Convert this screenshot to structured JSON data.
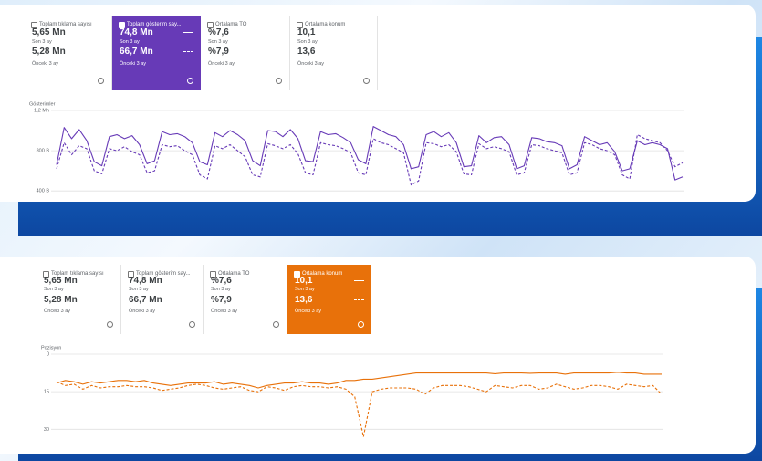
{
  "panels": [
    {
      "selected": 1,
      "cards": [
        {
          "title": "Toplam tıklama sayısı",
          "current": "5,65 Mn",
          "current_label": "Son 3 ay",
          "previous": "5,28 Mn",
          "previous_label": "Önceki 3 ay"
        },
        {
          "title": "Toplam gösterim say...",
          "current": "74,8 Mn",
          "previous": "66,7 Mn"
        },
        {
          "title": "Ortalama TO",
          "current": "%7,6",
          "current_label": "Son 3 ay",
          "previous": "%7,9",
          "previous_label": "Önceki 3 ay"
        },
        {
          "title": "Ortalama konum",
          "current": "10,1",
          "current_label": "Son 3 ay",
          "previous": "13,6",
          "previous_label": "Önceki 3 ay"
        }
      ]
    },
    {
      "selected": 3,
      "cards": [
        {
          "title": "Toplam tıklama sayısı",
          "current": "5,65 Mn",
          "current_label": "Son 3 ay",
          "previous": "5,28 Mn",
          "previous_label": "Önceki 3 ay"
        },
        {
          "title": "Toplam gösterim say...",
          "current": "74,8 Mn",
          "current_label": "Son 3 ay",
          "previous": "66,7 Mn",
          "previous_label": "Önceki 3 ay"
        },
        {
          "title": "Ortalama TO",
          "current": "%7,6",
          "current_label": "Son 3 ay",
          "previous": "%7,9",
          "previous_label": "Önceki 3 ay"
        },
        {
          "title": "Ortalama konum",
          "current": "10,1",
          "previous": "13,6"
        }
      ]
    }
  ],
  "chart_data": [
    {
      "type": "line",
      "y_label": "Gösterimler",
      "color": "#673ab7",
      "card_color": "#673ab7",
      "grid": true,
      "y_inverted": false,
      "ylim": [
        320000,
        1200000
      ],
      "yticks": [
        {
          "value": 1200000,
          "label": "1,2 Mn"
        },
        {
          "value": 800000,
          "label": "800 B"
        },
        {
          "value": 400000,
          "label": "400 B"
        }
      ],
      "series": [
        {
          "name": "Son 3 ay",
          "dash": false,
          "values": [
            660000,
            1030000,
            920000,
            1010000,
            900000,
            690000,
            650000,
            940000,
            960000,
            920000,
            950000,
            860000,
            670000,
            700000,
            990000,
            960000,
            970000,
            940000,
            880000,
            690000,
            660000,
            980000,
            940000,
            1000000,
            960000,
            900000,
            700000,
            650000,
            1000000,
            990000,
            940000,
            1010000,
            920000,
            700000,
            690000,
            990000,
            960000,
            970000,
            930000,
            880000,
            710000,
            670000,
            1040000,
            1000000,
            960000,
            940000,
            860000,
            620000,
            640000,
            960000,
            990000,
            940000,
            980000,
            880000,
            640000,
            650000,
            950000,
            880000,
            930000,
            940000,
            860000,
            620000,
            650000,
            930000,
            920000,
            890000,
            880000,
            850000,
            620000,
            660000,
            940000,
            900000,
            860000,
            880000,
            790000,
            600000,
            620000,
            900000,
            860000,
            880000,
            860000,
            820000,
            510000,
            540000
          ]
        },
        {
          "name": "Önceki 3 ay",
          "dash": true,
          "values": [
            620000,
            880000,
            760000,
            850000,
            820000,
            600000,
            570000,
            820000,
            800000,
            840000,
            790000,
            760000,
            580000,
            600000,
            860000,
            840000,
            850000,
            800000,
            760000,
            560000,
            520000,
            850000,
            820000,
            860000,
            800000,
            740000,
            560000,
            540000,
            870000,
            850000,
            820000,
            860000,
            770000,
            580000,
            560000,
            880000,
            860000,
            850000,
            820000,
            780000,
            580000,
            560000,
            920000,
            880000,
            860000,
            820000,
            780000,
            460000,
            500000,
            880000,
            870000,
            840000,
            860000,
            790000,
            570000,
            560000,
            870000,
            820000,
            840000,
            820000,
            790000,
            560000,
            580000,
            860000,
            850000,
            820000,
            800000,
            780000,
            560000,
            580000,
            880000,
            860000,
            820000,
            800000,
            760000,
            560000,
            520000,
            960000,
            920000,
            900000,
            880000,
            800000,
            640000,
            680000
          ]
        }
      ]
    },
    {
      "type": "line",
      "y_label": "Pozisyon",
      "color": "#e8710a",
      "card_color": "#e8710a",
      "grid": true,
      "y_inverted": true,
      "ylim": [
        0,
        39
      ],
      "yticks": [
        0,
        15,
        30
      ],
      "series": [
        {
          "name": "Son 3 ay",
          "dash": false,
          "values": [
            11.5,
            10.5,
            11,
            12,
            11,
            11.5,
            11,
            10.5,
            10.5,
            11,
            10.5,
            11.5,
            12,
            12.5,
            12,
            11.5,
            11.5,
            11.5,
            11,
            12,
            11.5,
            12,
            12.5,
            13.5,
            12.5,
            12,
            11.5,
            11.5,
            11,
            11.5,
            11.5,
            12,
            11.5,
            10.5,
            10.5,
            10,
            10,
            9.5,
            9,
            8.5,
            8,
            7.5,
            7.5,
            7.5,
            7.5,
            7.5,
            7.5,
            7.5,
            7.5,
            7.5,
            7.8,
            7.5,
            7.5,
            7.5,
            7.6,
            7.5,
            7.5,
            7.5,
            8,
            7.5,
            7.5,
            7.5,
            7.5,
            7.5,
            7.2,
            7.5,
            7.5,
            8,
            8,
            8
          ]
        },
        {
          "name": "Önceki 3 ay",
          "dash": true,
          "values": [
            11,
            12.5,
            12,
            14,
            12.5,
            13.5,
            13,
            13,
            12.5,
            13,
            13,
            13.5,
            14.5,
            14,
            13.5,
            12.5,
            12,
            12.5,
            13.5,
            14,
            13.5,
            13,
            14.5,
            15,
            13,
            13.5,
            14.5,
            13,
            12.5,
            13,
            13,
            13.5,
            13,
            14,
            17,
            33,
            15,
            14,
            13.5,
            13.5,
            13.5,
            14,
            16,
            13.5,
            12.5,
            12.5,
            12.5,
            13,
            14,
            15,
            12.5,
            13,
            13.5,
            12.5,
            12.5,
            14,
            13.5,
            12,
            13,
            14,
            13.5,
            12.5,
            12.5,
            13,
            14,
            12,
            12.5,
            13,
            12.5,
            16
          ]
        }
      ]
    }
  ]
}
